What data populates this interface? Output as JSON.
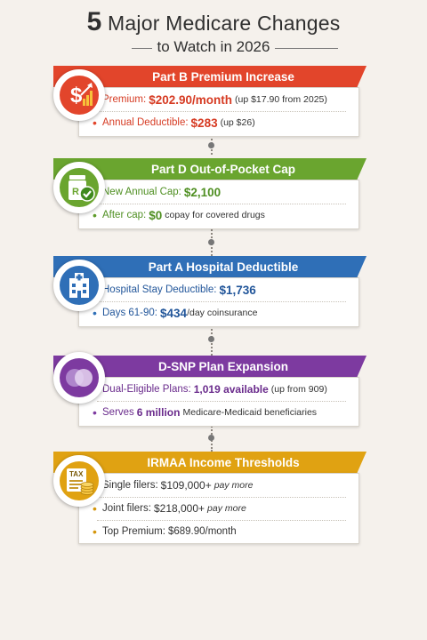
{
  "title": {
    "number": "5",
    "line1_rest": " Major Medicare Changes",
    "line2": "to Watch in 2026"
  },
  "colors": {
    "partB": "#e2452b",
    "partD": "#6aa52f",
    "partA": "#2f6fb7",
    "dsnp": "#7d3aa0",
    "irmaa": "#e0a212"
  },
  "sections": [
    {
      "title": "Part B Premium Increase",
      "icon": "dollar-growth-icon",
      "rows": [
        {
          "label": "Premium:",
          "value": "$202.90/month",
          "note": "(up $17.90 from 2025)"
        },
        {
          "label": "Annual Deductible:",
          "value": "$283",
          "note": "(up $26)"
        }
      ]
    },
    {
      "title": "Part D Out-of-Pocket Cap",
      "icon": "prescription-check-icon",
      "rows": [
        {
          "label": "New Annual Cap:",
          "value": "$2,100",
          "note": ""
        },
        {
          "label": "After cap:",
          "value": "$0",
          "note": "copay for covered drugs"
        }
      ]
    },
    {
      "title": "Part A Hospital Deductible",
      "icon": "hospital-icon",
      "rows": [
        {
          "label": "Hospital Stay Deductible:",
          "value": "$1,736",
          "note": ""
        },
        {
          "label": "Days 61-90:",
          "value": "$434",
          "note": "/day coinsurance"
        }
      ]
    },
    {
      "title": "D-SNP Plan Expansion",
      "icon": "overlapping-circles-icon",
      "rows": [
        {
          "label": "Dual-Eligible Plans:",
          "value": "1,019 available",
          "note": "(up from 909)"
        },
        {
          "label": "Serves",
          "value": "6 million",
          "note": "Medicare-Medicaid beneficiaries"
        }
      ]
    },
    {
      "title": "IRMAA Income Thresholds",
      "icon": "tax-form-coins-icon",
      "tax_label": "TAX",
      "rows": [
        {
          "label": "Single filers:",
          "value": "$109,000+",
          "note": "pay more"
        },
        {
          "label": "Joint filers:",
          "value": "$218,000+",
          "note": "pay more"
        },
        {
          "label": "Top Premium:",
          "value": "$689.90/month",
          "note": ""
        }
      ]
    }
  ]
}
